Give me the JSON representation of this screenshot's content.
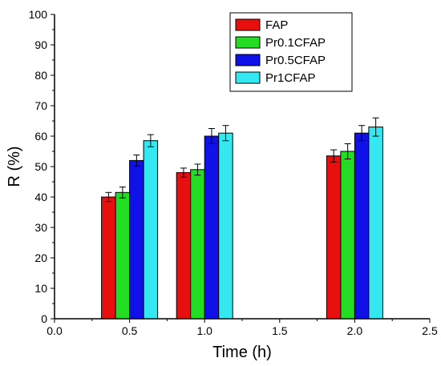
{
  "chart_data": {
    "type": "bar",
    "title": "",
    "xlabel": "Time (h)",
    "ylabel": "R (%)",
    "xlim": [
      0.0,
      2.5
    ],
    "ylim": [
      0,
      100
    ],
    "xticks": [
      "0.0",
      "0.5",
      "1.0",
      "1.5",
      "2.0",
      "2.5"
    ],
    "yticks": [
      "0",
      "10",
      "20",
      "30",
      "40",
      "50",
      "60",
      "70",
      "80",
      "90",
      "100"
    ],
    "categories": [
      "0.5",
      "1",
      "2"
    ],
    "x": [
      0.5,
      1.0,
      2.0
    ],
    "grid": false,
    "legend_position": "top-right",
    "error_bars": true,
    "series": [
      {
        "name": "FAP",
        "color": "#e8100e",
        "values": [
          40,
          48,
          53.5
        ],
        "errors": [
          1.5,
          1.5,
          2.0
        ]
      },
      {
        "name": "Pr0.1CFAP",
        "color": "#22dd22",
        "values": [
          41.5,
          49,
          55
        ],
        "errors": [
          1.8,
          1.8,
          2.5
        ]
      },
      {
        "name": "Pr0.5CFAP",
        "color": "#1010e8",
        "values": [
          52,
          60,
          61
        ],
        "errors": [
          1.8,
          2.5,
          2.5
        ]
      },
      {
        "name": "Pr1CFAP",
        "color": "#33e8f0",
        "values": [
          58.5,
          61,
          63
        ],
        "errors": [
          2.0,
          2.5,
          3.0
        ]
      }
    ]
  }
}
